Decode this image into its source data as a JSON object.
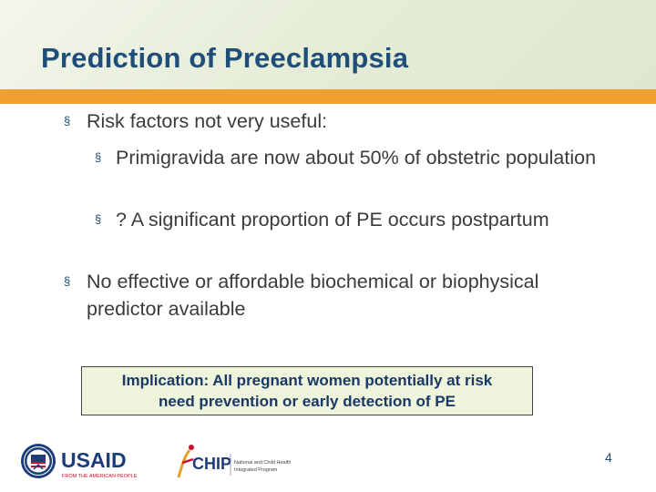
{
  "slide": {
    "title": "Prediction of Preeclampsia",
    "bullet_marker": "§",
    "bullets": [
      {
        "text": "Risk factors not very useful:"
      },
      {
        "text": "Primigravida are now about 50% of obstetric population"
      },
      {
        "text": "? A significant proportion of  PE occurs postpartum"
      },
      {
        "text": "No effective or affordable biochemical or biophysical predictor  available"
      }
    ],
    "callout": {
      "line1": "Implication: All pregnant women potentially at risk",
      "line2": "need prevention or early detection of PE"
    },
    "logos": {
      "usaid": {
        "word": "USAID",
        "tagline": "FROM THE AMERICAN PEOPLE"
      },
      "chip": {
        "word": "CHIP",
        "line1": "National and Child Health",
        "line2": "Integrated Program"
      }
    },
    "page_number": "4"
  },
  "colors": {
    "title": "#1f4e79",
    "accent_bar": "#f0a030",
    "body_text": "#3b3b3b",
    "callout_bg": "#eef5dc",
    "usaid_blue": "#1d3c7a",
    "usaid_red": "#c8102e"
  }
}
